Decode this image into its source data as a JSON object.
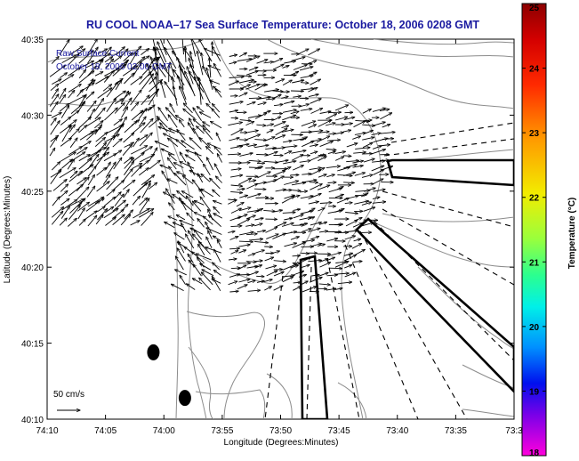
{
  "chart_data": {
    "type": "vector_field_map",
    "title": "RU COOL  NOAA–17  Sea Surface Temperature:  October 18, 2006 0208 GMT",
    "xlabel": "Longitude (Degrees:Minutes)",
    "ylabel": "Latitude (Degrees:Minutes)",
    "x_ticks": [
      "74:10",
      "74:05",
      "74:00",
      "73:55",
      "73:50",
      "73:45",
      "73:40",
      "73:35",
      "73:3"
    ],
    "y_ticks": [
      "40:35",
      "40:30",
      "40:25",
      "40:20",
      "40:15",
      "40:10"
    ],
    "xlim_minutes_west": [
      10,
      -30
    ],
    "ylim_minutes_north": [
      10,
      35
    ],
    "inset_labels": [
      "Raw Surface Current",
      "October 18, 2006 02:00 GMT"
    ],
    "scale_label": "50 cm/s",
    "colorbar": {
      "label": "Temperature (°C)",
      "ticks": [
        "25",
        "24",
        "23",
        "22",
        "21",
        "20",
        "19",
        "18"
      ],
      "range": [
        18,
        25
      ]
    },
    "colors": {
      "title": "#1a1aa0",
      "coast": "#8c8c8c",
      "arrows": "#000000"
    },
    "stations": [
      {
        "lon": -74.015,
        "lat": 40.24
      },
      {
        "lon": -73.97,
        "lat": 40.19
      }
    ]
  }
}
